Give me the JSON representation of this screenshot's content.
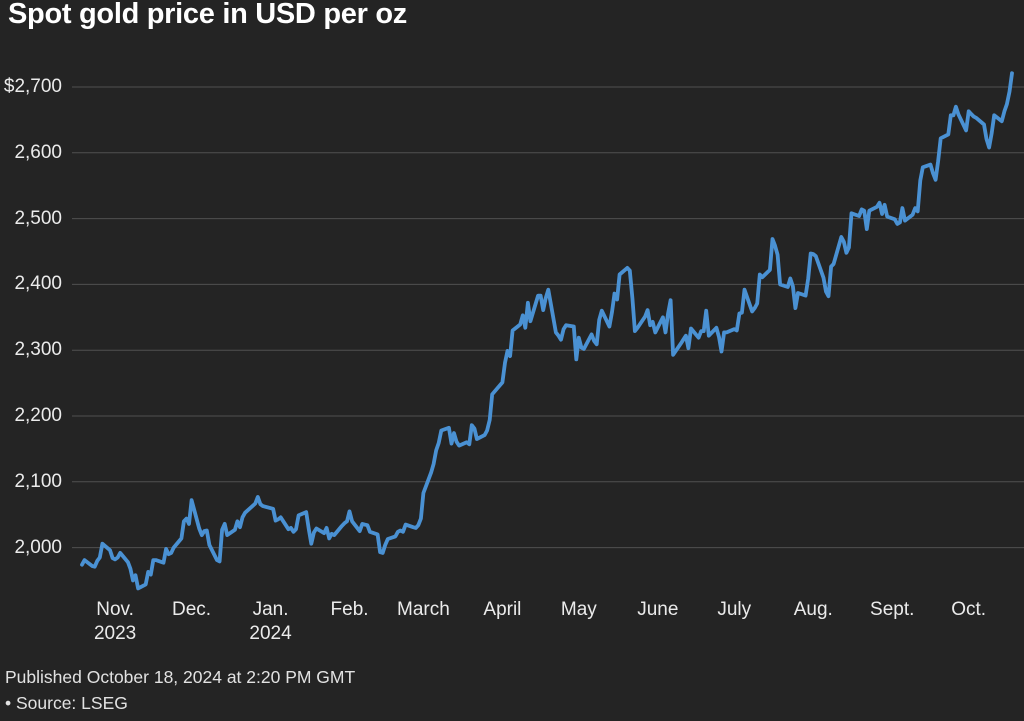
{
  "title": "Spot gold price in USD per oz",
  "footer": {
    "published": "Published October 18, 2024 at 2:20 PM GMT",
    "source": "• Source: LSEG"
  },
  "colors": {
    "background": "#242424",
    "line": "#4a91d3",
    "grid": "#505050",
    "title_text": "#ffffff",
    "axis_text": "#ebebeb",
    "footer_text": "#e2e2e2"
  },
  "chart_data": {
    "type": "line",
    "title": "Spot gold price in USD per oz",
    "xlabel": "",
    "ylabel": "USD per oz",
    "grid": true,
    "legend": "none",
    "y_range": [
      1930,
      2730
    ],
    "x_range": [
      "2023-10-19",
      "2024-10-18"
    ],
    "y_ticks": [
      {
        "label": "$2,700",
        "value": 2700
      },
      {
        "label": "2,600",
        "value": 2600
      },
      {
        "label": "2,500",
        "value": 2500
      },
      {
        "label": "2,400",
        "value": 2400
      },
      {
        "label": "2,300",
        "value": 2300
      },
      {
        "label": "2,200",
        "value": 2200
      },
      {
        "label": "2,100",
        "value": 2100
      },
      {
        "label": "2,000",
        "value": 2000
      }
    ],
    "x_ticks": [
      {
        "label": "Nov.",
        "year": "2023",
        "date": "2023-11-01"
      },
      {
        "label": "Dec.",
        "date": "2023-12-01"
      },
      {
        "label": "Jan.",
        "year": "2024",
        "date": "2024-01-01"
      },
      {
        "label": "Feb.",
        "date": "2024-02-01"
      },
      {
        "label": "March",
        "date": "2024-03-01"
      },
      {
        "label": "April",
        "date": "2024-04-01"
      },
      {
        "label": "May",
        "date": "2024-05-01"
      },
      {
        "label": "June",
        "date": "2024-06-01"
      },
      {
        "label": "July",
        "date": "2024-07-01"
      },
      {
        "label": "Aug.",
        "date": "2024-08-01"
      },
      {
        "label": "Sept.",
        "date": "2024-09-01"
      },
      {
        "label": "Oct.",
        "date": "2024-10-01"
      }
    ],
    "series": [
      {
        "name": "Spot gold price (USD per oz)",
        "points": [
          [
            "2023-10-19",
            1974
          ],
          [
            "2023-10-20",
            1981
          ],
          [
            "2023-10-23",
            1972
          ],
          [
            "2023-10-24",
            1971
          ],
          [
            "2023-10-25",
            1980
          ],
          [
            "2023-10-26",
            1985
          ],
          [
            "2023-10-27",
            2006
          ],
          [
            "2023-10-30",
            1996
          ],
          [
            "2023-10-31",
            1984
          ],
          [
            "2023-11-01",
            1982
          ],
          [
            "2023-11-02",
            1985
          ],
          [
            "2023-11-03",
            1992
          ],
          [
            "2023-11-06",
            1978
          ],
          [
            "2023-11-07",
            1968
          ],
          [
            "2023-11-08",
            1950
          ],
          [
            "2023-11-09",
            1958
          ],
          [
            "2023-11-10",
            1938
          ],
          [
            "2023-11-13",
            1944
          ],
          [
            "2023-11-14",
            1963
          ],
          [
            "2023-11-15",
            1959
          ],
          [
            "2023-11-16",
            1981
          ],
          [
            "2023-11-17",
            1981
          ],
          [
            "2023-11-20",
            1977
          ],
          [
            "2023-11-21",
            1998
          ],
          [
            "2023-11-22",
            1990
          ],
          [
            "2023-11-23",
            1992
          ],
          [
            "2023-11-24",
            2000
          ],
          [
            "2023-11-27",
            2014
          ],
          [
            "2023-11-28",
            2040
          ],
          [
            "2023-11-29",
            2044
          ],
          [
            "2023-11-30",
            2036
          ],
          [
            "2023-12-01",
            2072
          ],
          [
            "2023-12-04",
            2029
          ],
          [
            "2023-12-05",
            2019
          ],
          [
            "2023-12-06",
            2025
          ],
          [
            "2023-12-07",
            2026
          ],
          [
            "2023-12-08",
            2004
          ],
          [
            "2023-12-11",
            1981
          ],
          [
            "2023-12-12",
            1979
          ],
          [
            "2023-12-13",
            2027
          ],
          [
            "2023-12-14",
            2036
          ],
          [
            "2023-12-15",
            2019
          ],
          [
            "2023-12-18",
            2027
          ],
          [
            "2023-12-19",
            2040
          ],
          [
            "2023-12-20",
            2031
          ],
          [
            "2023-12-21",
            2046
          ],
          [
            "2023-12-22",
            2053
          ],
          [
            "2023-12-26",
            2067
          ],
          [
            "2023-12-27",
            2077
          ],
          [
            "2023-12-28",
            2066
          ],
          [
            "2023-12-29",
            2063
          ],
          [
            "2024-01-02",
            2059
          ],
          [
            "2024-01-03",
            2041
          ],
          [
            "2024-01-04",
            2043
          ],
          [
            "2024-01-05",
            2046
          ],
          [
            "2024-01-08",
            2028
          ],
          [
            "2024-01-09",
            2030
          ],
          [
            "2024-01-10",
            2024
          ],
          [
            "2024-01-11",
            2028
          ],
          [
            "2024-01-12",
            2049
          ],
          [
            "2024-01-15",
            2054
          ],
          [
            "2024-01-16",
            2028
          ],
          [
            "2024-01-17",
            2006
          ],
          [
            "2024-01-18",
            2023
          ],
          [
            "2024-01-19",
            2029
          ],
          [
            "2024-01-22",
            2022
          ],
          [
            "2024-01-23",
            2030
          ],
          [
            "2024-01-24",
            2014
          ],
          [
            "2024-01-25",
            2021
          ],
          [
            "2024-01-26",
            2019
          ],
          [
            "2024-01-29",
            2033
          ],
          [
            "2024-01-30",
            2037
          ],
          [
            "2024-01-31",
            2040
          ],
          [
            "2024-02-01",
            2055
          ],
          [
            "2024-02-02",
            2040
          ],
          [
            "2024-02-05",
            2025
          ],
          [
            "2024-02-06",
            2036
          ],
          [
            "2024-02-07",
            2035
          ],
          [
            "2024-02-08",
            2034
          ],
          [
            "2024-02-09",
            2024
          ],
          [
            "2024-02-12",
            2020
          ],
          [
            "2024-02-13",
            1993
          ],
          [
            "2024-02-14",
            1992
          ],
          [
            "2024-02-15",
            2004
          ],
          [
            "2024-02-16",
            2013
          ],
          [
            "2024-02-19",
            2017
          ],
          [
            "2024-02-20",
            2024
          ],
          [
            "2024-02-21",
            2026
          ],
          [
            "2024-02-22",
            2024
          ],
          [
            "2024-02-23",
            2035
          ],
          [
            "2024-02-26",
            2031
          ],
          [
            "2024-02-27",
            2030
          ],
          [
            "2024-02-28",
            2034
          ],
          [
            "2024-02-29",
            2044
          ],
          [
            "2024-03-01",
            2083
          ],
          [
            "2024-03-04",
            2114
          ],
          [
            "2024-03-05",
            2127
          ],
          [
            "2024-03-06",
            2148
          ],
          [
            "2024-03-07",
            2159
          ],
          [
            "2024-03-08",
            2178
          ],
          [
            "2024-03-11",
            2182
          ],
          [
            "2024-03-12",
            2158
          ],
          [
            "2024-03-13",
            2174
          ],
          [
            "2024-03-14",
            2161
          ],
          [
            "2024-03-15",
            2155
          ],
          [
            "2024-03-18",
            2160
          ],
          [
            "2024-03-19",
            2157
          ],
          [
            "2024-03-20",
            2186
          ],
          [
            "2024-03-21",
            2181
          ],
          [
            "2024-03-22",
            2165
          ],
          [
            "2024-03-25",
            2171
          ],
          [
            "2024-03-26",
            2178
          ],
          [
            "2024-03-27",
            2194
          ],
          [
            "2024-03-28",
            2233
          ],
          [
            "2024-04-01",
            2251
          ],
          [
            "2024-04-02",
            2281
          ],
          [
            "2024-04-03",
            2299
          ],
          [
            "2024-04-04",
            2291
          ],
          [
            "2024-04-05",
            2330
          ],
          [
            "2024-04-08",
            2339
          ],
          [
            "2024-04-09",
            2353
          ],
          [
            "2024-04-10",
            2334
          ],
          [
            "2024-04-11",
            2372
          ],
          [
            "2024-04-12",
            2344
          ],
          [
            "2024-04-15",
            2383
          ],
          [
            "2024-04-16",
            2383
          ],
          [
            "2024-04-17",
            2361
          ],
          [
            "2024-04-18",
            2379
          ],
          [
            "2024-04-19",
            2392
          ],
          [
            "2024-04-22",
            2327
          ],
          [
            "2024-04-23",
            2322
          ],
          [
            "2024-04-24",
            2316
          ],
          [
            "2024-04-25",
            2332
          ],
          [
            "2024-04-26",
            2338
          ],
          [
            "2024-04-29",
            2336
          ],
          [
            "2024-04-30",
            2286
          ],
          [
            "2024-05-01",
            2319
          ],
          [
            "2024-05-02",
            2304
          ],
          [
            "2024-05-03",
            2302
          ],
          [
            "2024-05-06",
            2324
          ],
          [
            "2024-05-07",
            2314
          ],
          [
            "2024-05-08",
            2309
          ],
          [
            "2024-05-09",
            2346
          ],
          [
            "2024-05-10",
            2360
          ],
          [
            "2024-05-13",
            2336
          ],
          [
            "2024-05-14",
            2358
          ],
          [
            "2024-05-15",
            2386
          ],
          [
            "2024-05-16",
            2377
          ],
          [
            "2024-05-17",
            2415
          ],
          [
            "2024-05-20",
            2425
          ],
          [
            "2024-05-21",
            2421
          ],
          [
            "2024-05-22",
            2379
          ],
          [
            "2024-05-23",
            2329
          ],
          [
            "2024-05-24",
            2334
          ],
          [
            "2024-05-27",
            2351
          ],
          [
            "2024-05-28",
            2361
          ],
          [
            "2024-05-29",
            2338
          ],
          [
            "2024-05-30",
            2343
          ],
          [
            "2024-05-31",
            2327
          ],
          [
            "2024-06-03",
            2350
          ],
          [
            "2024-06-04",
            2327
          ],
          [
            "2024-06-05",
            2355
          ],
          [
            "2024-06-06",
            2376
          ],
          [
            "2024-06-07",
            2293
          ],
          [
            "2024-06-10",
            2310
          ],
          [
            "2024-06-11",
            2316
          ],
          [
            "2024-06-12",
            2322
          ],
          [
            "2024-06-13",
            2303
          ],
          [
            "2024-06-14",
            2333
          ],
          [
            "2024-06-17",
            2319
          ],
          [
            "2024-06-18",
            2329
          ],
          [
            "2024-06-19",
            2329
          ],
          [
            "2024-06-20",
            2360
          ],
          [
            "2024-06-21",
            2322
          ],
          [
            "2024-06-24",
            2334
          ],
          [
            "2024-06-25",
            2320
          ],
          [
            "2024-06-26",
            2298
          ],
          [
            "2024-06-27",
            2327
          ],
          [
            "2024-06-28",
            2327
          ],
          [
            "2024-07-01",
            2332
          ],
          [
            "2024-07-02",
            2330
          ],
          [
            "2024-07-03",
            2356
          ],
          [
            "2024-07-04",
            2357
          ],
          [
            "2024-07-05",
            2392
          ],
          [
            "2024-07-08",
            2359
          ],
          [
            "2024-07-09",
            2364
          ],
          [
            "2024-07-10",
            2371
          ],
          [
            "2024-07-11",
            2415
          ],
          [
            "2024-07-12",
            2411
          ],
          [
            "2024-07-15",
            2422
          ],
          [
            "2024-07-16",
            2469
          ],
          [
            "2024-07-17",
            2459
          ],
          [
            "2024-07-18",
            2445
          ],
          [
            "2024-07-19",
            2400
          ],
          [
            "2024-07-22",
            2396
          ],
          [
            "2024-07-23",
            2409
          ],
          [
            "2024-07-24",
            2397
          ],
          [
            "2024-07-25",
            2364
          ],
          [
            "2024-07-26",
            2387
          ],
          [
            "2024-07-29",
            2383
          ],
          [
            "2024-07-30",
            2409
          ],
          [
            "2024-07-31",
            2447
          ],
          [
            "2024-08-01",
            2446
          ],
          [
            "2024-08-02",
            2443
          ],
          [
            "2024-08-05",
            2410
          ],
          [
            "2024-08-06",
            2389
          ],
          [
            "2024-08-07",
            2382
          ],
          [
            "2024-08-08",
            2427
          ],
          [
            "2024-08-09",
            2431
          ],
          [
            "2024-08-12",
            2472
          ],
          [
            "2024-08-13",
            2465
          ],
          [
            "2024-08-14",
            2448
          ],
          [
            "2024-08-15",
            2456
          ],
          [
            "2024-08-16",
            2508
          ],
          [
            "2024-08-19",
            2504
          ],
          [
            "2024-08-20",
            2514
          ],
          [
            "2024-08-21",
            2512
          ],
          [
            "2024-08-22",
            2484
          ],
          [
            "2024-08-23",
            2512
          ],
          [
            "2024-08-26",
            2518
          ],
          [
            "2024-08-27",
            2524
          ],
          [
            "2024-08-28",
            2507
          ],
          [
            "2024-08-29",
            2521
          ],
          [
            "2024-08-30",
            2503
          ],
          [
            "2024-09-02",
            2499
          ],
          [
            "2024-09-03",
            2492
          ],
          [
            "2024-09-04",
            2494
          ],
          [
            "2024-09-05",
            2516
          ],
          [
            "2024-09-06",
            2497
          ],
          [
            "2024-09-09",
            2506
          ],
          [
            "2024-09-10",
            2516
          ],
          [
            "2024-09-11",
            2511
          ],
          [
            "2024-09-12",
            2558
          ],
          [
            "2024-09-13",
            2578
          ],
          [
            "2024-09-16",
            2582
          ],
          [
            "2024-09-17",
            2569
          ],
          [
            "2024-09-18",
            2559
          ],
          [
            "2024-09-19",
            2587
          ],
          [
            "2024-09-20",
            2622
          ],
          [
            "2024-09-23",
            2628
          ],
          [
            "2024-09-24",
            2657
          ],
          [
            "2024-09-25",
            2657
          ],
          [
            "2024-09-26",
            2670
          ],
          [
            "2024-09-27",
            2658
          ],
          [
            "2024-09-30",
            2634
          ],
          [
            "2024-10-01",
            2663
          ],
          [
            "2024-10-02",
            2659
          ],
          [
            "2024-10-03",
            2655
          ],
          [
            "2024-10-04",
            2653
          ],
          [
            "2024-10-07",
            2643
          ],
          [
            "2024-10-08",
            2621
          ],
          [
            "2024-10-09",
            2608
          ],
          [
            "2024-10-10",
            2629
          ],
          [
            "2024-10-11",
            2657
          ],
          [
            "2024-10-14",
            2648
          ],
          [
            "2024-10-15",
            2663
          ],
          [
            "2024-10-16",
            2674
          ],
          [
            "2024-10-17",
            2693
          ],
          [
            "2024-10-18",
            2721
          ]
        ]
      }
    ]
  }
}
